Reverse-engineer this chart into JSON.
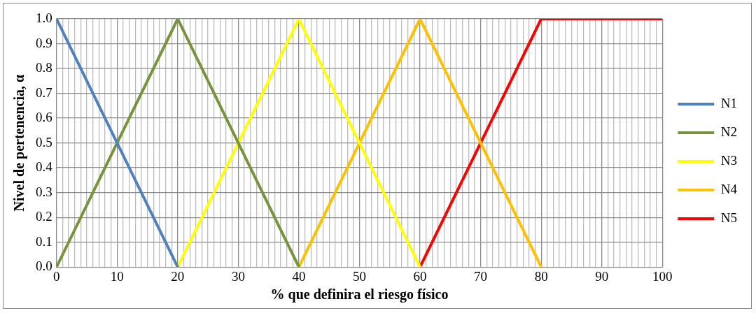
{
  "chart_data": {
    "type": "line",
    "xlabel": "% que definira el riesgo físico",
    "ylabel": "Nivel de pertenencia, α",
    "series": [
      {
        "name": "N1",
        "color": "#4f81bd",
        "x": [
          0,
          20
        ],
        "values": [
          1,
          0
        ]
      },
      {
        "name": "N2",
        "color": "#77933c",
        "x": [
          0,
          20,
          40
        ],
        "values": [
          0,
          1,
          0
        ]
      },
      {
        "name": "N3",
        "color": "#ffff00",
        "x": [
          20,
          40,
          60
        ],
        "values": [
          0,
          1,
          0
        ]
      },
      {
        "name": "N4",
        "color": "#ffc000",
        "x": [
          40,
          60,
          80
        ],
        "values": [
          0,
          1,
          0
        ]
      },
      {
        "name": "N5",
        "color": "#ff0000",
        "x": [
          60,
          80,
          100
        ],
        "values": [
          0,
          1,
          1
        ]
      }
    ],
    "xlim": [
      0,
      100
    ],
    "xticks": [
      0,
      {
        "value": 1,
        "label": null
      },
      {
        "value": 2,
        "label": null
      },
      {
        "value": 3,
        "label": null
      },
      {
        "value": 4,
        "label": null
      },
      {
        "value": 5,
        "label": null
      },
      {
        "value": 6,
        "label": null
      },
      {
        "value": 7,
        "label": null
      },
      {
        "value": 8,
        "label": null
      },
      {
        "value": 9,
        "label": null
      },
      10,
      {
        "value": 11,
        "label": null
      },
      {
        "value": 12,
        "label": null
      },
      {
        "value": 13,
        "label": null
      },
      {
        "value": 14,
        "label": null
      },
      {
        "value": 15,
        "label": null
      },
      {
        "value": 16,
        "label": null
      },
      {
        "value": 17,
        "label": null
      },
      {
        "value": 18,
        "label": null
      },
      {
        "value": 19,
        "label": null
      },
      20,
      {
        "value": 21,
        "label": null
      },
      {
        "value": 22,
        "label": null
      },
      {
        "value": 23,
        "label": null
      },
      {
        "value": 24,
        "label": null
      },
      {
        "value": 25,
        "label": null
      },
      {
        "value": 26,
        "label": null
      },
      {
        "value": 27,
        "label": null
      },
      {
        "value": 28,
        "label": null
      },
      {
        "value": 29,
        "label": null
      },
      30,
      {
        "value": 31,
        "label": null
      },
      {
        "value": 32,
        "label": null
      },
      {
        "value": 33,
        "label": null
      },
      {
        "value": 34,
        "label": null
      },
      {
        "value": 35,
        "label": null
      },
      {
        "value": 36,
        "label": null
      },
      {
        "value": 37,
        "label": null
      },
      {
        "value": 38,
        "label": null
      },
      {
        "value": 39,
        "label": null
      },
      40,
      {
        "value": 41,
        "label": null
      },
      {
        "value": 42,
        "label": null
      },
      {
        "value": 43,
        "label": null
      },
      {
        "value": 44,
        "label": null
      },
      {
        "value": 45,
        "label": null
      },
      {
        "value": 46,
        "label": null
      },
      {
        "value": 47,
        "label": null
      },
      {
        "value": 48,
        "label": null
      },
      {
        "value": 49,
        "label": null
      },
      50,
      {
        "value": 51,
        "label": null
      },
      {
        "value": 52,
        "label": null
      },
      {
        "value": 53,
        "label": null
      },
      {
        "value": 54,
        "label": null
      },
      {
        "value": 55,
        "label": null
      },
      {
        "value": 56,
        "label": null
      },
      {
        "value": 57,
        "label": null
      },
      {
        "value": 58,
        "label": null
      },
      {
        "value": 59,
        "label": null
      },
      60,
      {
        "value": 61,
        "label": null
      },
      {
        "value": 62,
        "label": null
      },
      {
        "value": 63,
        "label": null
      },
      {
        "value": 64,
        "label": null
      },
      {
        "value": 65,
        "label": null
      },
      {
        "value": 66,
        "label": null
      },
      {
        "value": 67,
        "label": null
      },
      {
        "value": 68,
        "label": null
      },
      {
        "value": 69,
        "label": null
      },
      70,
      {
        "value": 71,
        "label": null
      },
      {
        "value": 72,
        "label": null
      },
      {
        "value": 73,
        "label": null
      },
      {
        "value": 74,
        "label": null
      },
      {
        "value": 75,
        "label": null
      },
      {
        "value": 76,
        "label": null
      },
      {
        "value": 77,
        "label": null
      },
      {
        "value": 78,
        "label": null
      },
      {
        "value": 79,
        "label": null
      },
      80,
      {
        "value": 81,
        "label": null
      },
      {
        "value": 82,
        "label": null
      },
      {
        "value": 83,
        "label": null
      },
      {
        "value": 84,
        "label": null
      },
      {
        "value": 85,
        "label": null
      },
      {
        "value": 86,
        "label": null
      },
      {
        "value": 87,
        "label": null
      },
      {
        "value": 88,
        "label": null
      },
      {
        "value": 89,
        "label": null
      },
      90,
      {
        "value": 91,
        "label": null
      },
      {
        "value": 92,
        "label": null
      },
      {
        "value": 93,
        "label": null
      },
      {
        "value": 94,
        "label": null
      },
      {
        "value": 95,
        "label": null
      },
      {
        "value": 96,
        "label": null
      },
      {
        "value": 97,
        "label": null
      },
      {
        "value": 98,
        "label": null
      },
      {
        "value": 99,
        "label": null
      },
      100
    ],
    "ylim": [
      0,
      1
    ],
    "yticks": [
      {
        "value": 0,
        "label": "0.0"
      },
      {
        "value": 0.1,
        "label": "0.1"
      },
      {
        "value": 0.2,
        "label": "0.2"
      },
      {
        "value": 0.3,
        "label": "0.3"
      },
      {
        "value": 0.4,
        "label": "0.4"
      },
      {
        "value": 0.5,
        "label": "0.5"
      },
      {
        "value": 0.6,
        "label": "0.6"
      },
      {
        "value": 0.7,
        "label": "0.7"
      },
      {
        "value": 0.8,
        "label": "0.8"
      },
      {
        "value": 0.9,
        "label": "0.9"
      },
      {
        "value": 1,
        "label": "1.0"
      }
    ],
    "grid": true,
    "legend": "right",
    "marker": "none",
    "line_style": "solid"
  }
}
